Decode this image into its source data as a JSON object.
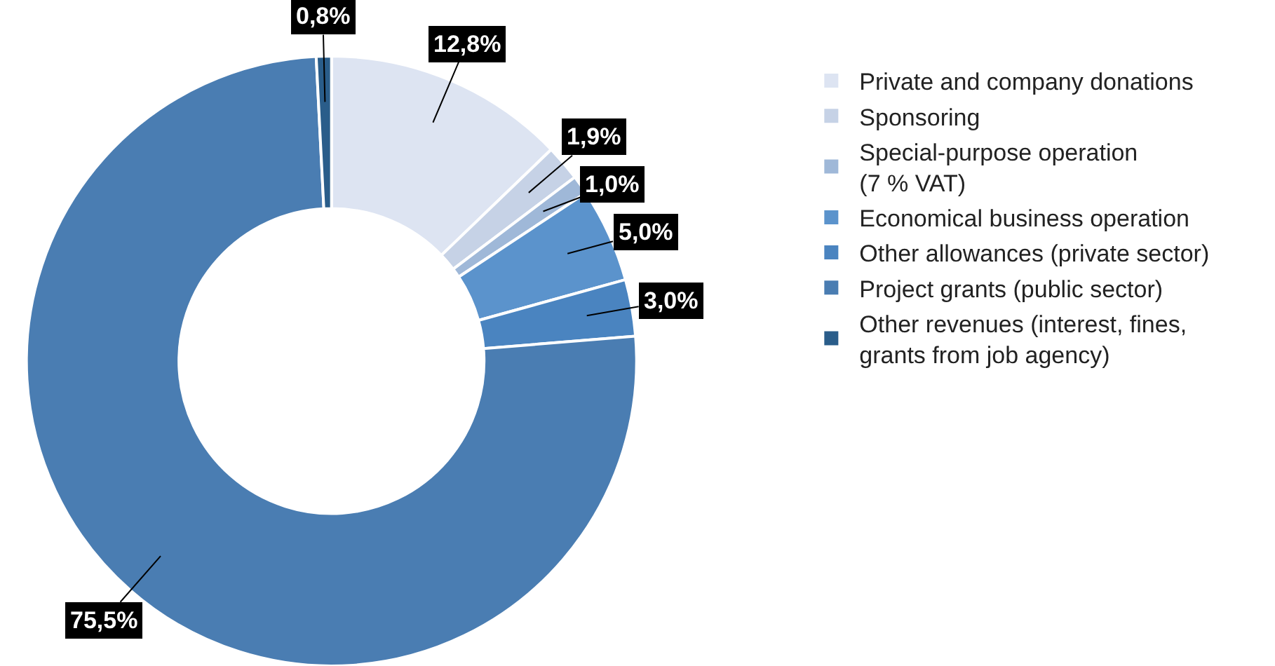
{
  "chart_data": {
    "type": "donut",
    "categories": [
      "Private and company donations",
      "Sponsoring",
      "Special-purpose operation\n(7 % VAT)",
      "Economical business operation",
      "Other allowances (private sector)",
      "Project grants (public sector)",
      "Other revenues (interest, fines,\ngrants from job agency)"
    ],
    "values": [
      12.8,
      1.9,
      1.0,
      5.0,
      3.0,
      75.5,
      0.8
    ],
    "value_labels": [
      "12,8%",
      "1,9%",
      "1,0%",
      "5,0%",
      "3,0%",
      "75,5%",
      "0,8%"
    ],
    "colors": [
      "#dde4f2",
      "#c6d2e6",
      "#9fb8d8",
      "#5b93cc",
      "#4a84c0",
      "#4a7db2",
      "#2a5d8a"
    ],
    "legend": "top right"
  }
}
